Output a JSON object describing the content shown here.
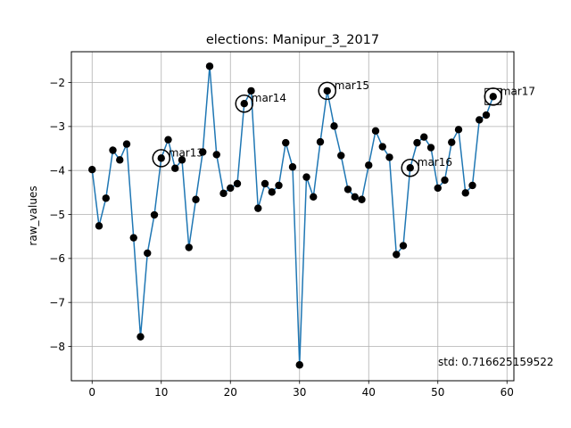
{
  "chart_data": {
    "type": "line",
    "title": "elections: Manipur_3_2017",
    "xlabel": "",
    "ylabel": "raw_values",
    "xlim": [
      -3,
      61
    ],
    "ylim": [
      -8.78,
      -1.3
    ],
    "x_ticks": [
      0,
      10,
      20,
      30,
      40,
      50,
      60
    ],
    "y_ticks": [
      -8,
      -7,
      -6,
      -5,
      -4,
      -3,
      -2
    ],
    "grid": true,
    "colors": {
      "line": "#1f77b4",
      "marker": "#000000",
      "grid": "#b0b0b0"
    },
    "series": [
      {
        "x": [
          0,
          1,
          2,
          3,
          4,
          5,
          6,
          7,
          8,
          9,
          10,
          11,
          12,
          13,
          14,
          15,
          16,
          17,
          18,
          19,
          20,
          21,
          22,
          23,
          24,
          25,
          26,
          27,
          28,
          29,
          30,
          31,
          32,
          33,
          34,
          35,
          36,
          37,
          38,
          39,
          40,
          41,
          42,
          43,
          44,
          45,
          46,
          47,
          48,
          49,
          50,
          51,
          52,
          53,
          54,
          55,
          56,
          57,
          58
        ],
        "y": [
          -3.98,
          -5.26,
          -4.63,
          -3.54,
          -3.76,
          -3.4,
          -5.53,
          -7.78,
          -5.88,
          -5.01,
          -3.72,
          -3.3,
          -3.95,
          -3.76,
          -5.75,
          -4.66,
          -3.58,
          -1.63,
          -3.64,
          -4.52,
          -4.4,
          -4.3,
          -2.48,
          -2.19,
          -4.86,
          -4.3,
          -4.49,
          -4.34,
          -3.37,
          -3.92,
          -8.42,
          -4.15,
          -4.6,
          -3.35,
          -2.19,
          -2.99,
          -3.66,
          -4.43,
          -4.6,
          -4.66,
          -3.88,
          -3.1,
          -3.46,
          -3.7,
          -5.91,
          -5.71,
          -3.94,
          -3.37,
          -3.24,
          -3.48,
          -4.4,
          -4.22,
          -3.36,
          -3.07,
          -4.51,
          -4.34,
          -2.85,
          -2.74,
          -2.32
        ]
      }
    ],
    "annotations": [
      {
        "label": "mar13",
        "x": 10,
        "y": -3.72,
        "marker": "circle"
      },
      {
        "label": "mar14",
        "x": 22,
        "y": -2.48,
        "marker": "circle"
      },
      {
        "label": "mar15",
        "x": 34,
        "y": -2.19,
        "marker": "circle"
      },
      {
        "label": "mar16",
        "x": 46,
        "y": -3.94,
        "marker": "circle"
      },
      {
        "label": "mar17",
        "x": 58,
        "y": -2.32,
        "marker": "square"
      }
    ],
    "std_text": "std: 0.716625159522"
  }
}
